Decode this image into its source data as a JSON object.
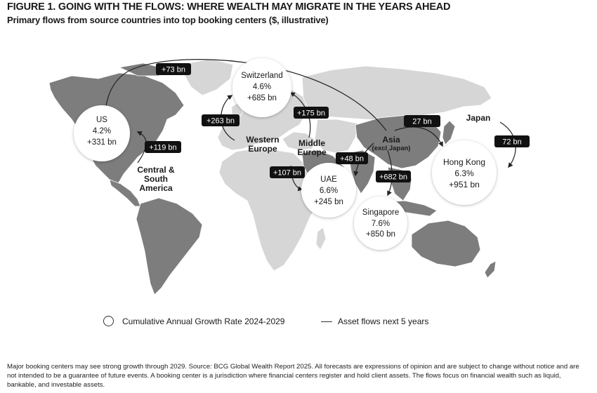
{
  "header": {
    "title": "FIGURE 1. GOING WITH THE FLOWS: WHERE WEALTH MAY MIGRATE IN THE YEARS AHEAD",
    "subtitle": "Primary flows from source countries into top booking centers ($, illustrative)"
  },
  "colors": {
    "land_light": "#d6d6d6",
    "land_dark": "#7d7d7d",
    "flow_label_bg": "#111111",
    "flow_label_text": "#ffffff",
    "bubble_fill": "#ffffff"
  },
  "regions": {
    "central_south_america": {
      "line1": "Central &",
      "line2": "South",
      "line3": "America"
    },
    "western_europe": {
      "line1": "Western",
      "line2": "Europe"
    },
    "middle_europe": {
      "line1": "Middle",
      "line2": "Europe"
    },
    "asia": {
      "line1": "Asia",
      "line2": "(excl Japan)"
    },
    "japan": {
      "line1": "Japan"
    }
  },
  "booking_centers": {
    "us": {
      "name": "US",
      "growth": "4.2%",
      "assets": "+331 bn"
    },
    "switzerland": {
      "name": "Switzerland",
      "growth": "4.6%",
      "assets": "+685 bn"
    },
    "uae": {
      "name": "UAE",
      "growth": "6.6%",
      "assets": "+245 bn"
    },
    "singapore": {
      "name": "Singapore",
      "growth": "7.6%",
      "assets": "+850 bn"
    },
    "hong_kong": {
      "name": "Hong Kong",
      "growth": "6.3%",
      "assets": "+951 bn"
    }
  },
  "flows": {
    "asia_to_us": "+73 bn",
    "we_to_switzerland": "+263 bn",
    "me_to_switzerland": "+175 bn",
    "csa_to_us": "+119 bn",
    "me_to_uae": "+107 bn",
    "asia_to_uae": "+48 bn",
    "asia_to_singapore": "+682 bn",
    "asia_to_hongkong": "27 bn",
    "japan_to_hongkong": "72 bn"
  },
  "legend": {
    "growth_label": "Cumulative Annual Growth Rate 2024-2029",
    "flow_label": "Asset flows next 5 years"
  },
  "footnote": "Major booking centers may see strong growth through 2029. Source: BCG Global Wealth Report 2025. All forecasts are expressions of opinion and are subject to change without notice and are not intended to be a guarantee of future events. A booking center is a jurisdiction where financial centers register and hold client assets. The flows focus on financial wealth such as liquid, bankable, and investable assets."
}
